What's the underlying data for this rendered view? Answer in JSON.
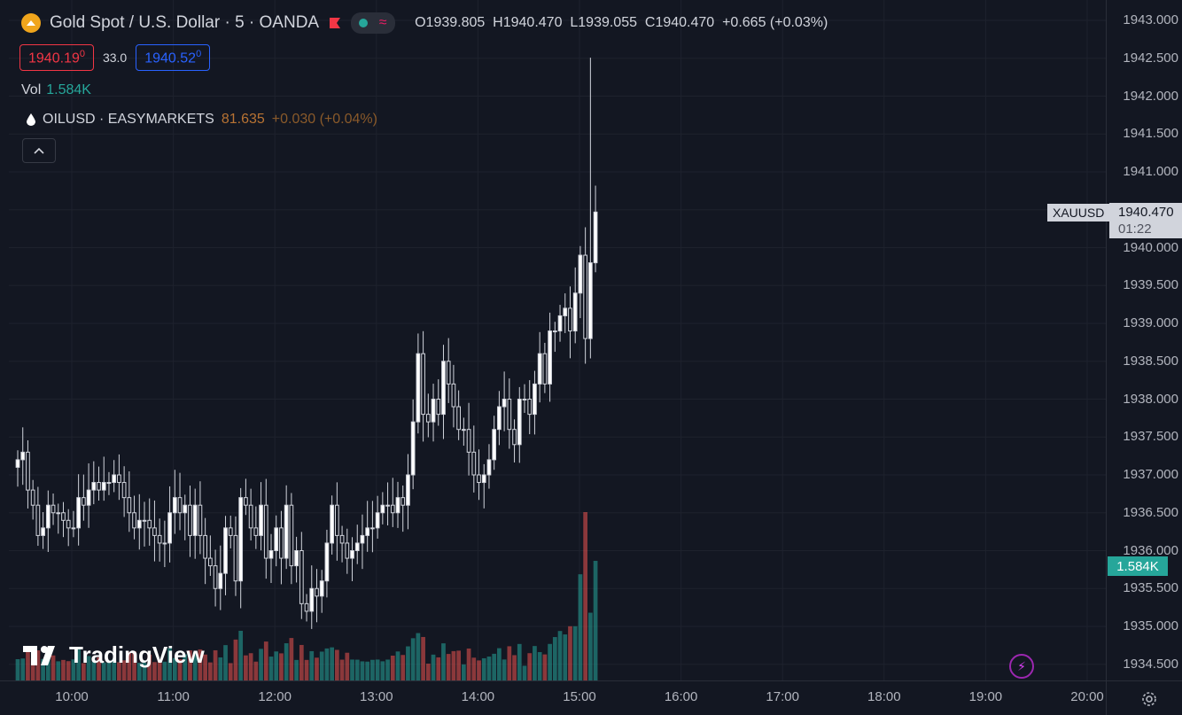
{
  "header": {
    "symbol_title": "Gold Spot / U.S. Dollar · 5 · OANDA",
    "ohlc": {
      "o_label": "O",
      "o": "1939.805",
      "h_label": "H",
      "h": "1940.470",
      "l_label": "L",
      "l": "1939.055",
      "c_label": "C",
      "c": "1940.470",
      "change": "+0.665 (+0.03%)"
    }
  },
  "quotes": {
    "sell": "1940.19",
    "sell_sup": "0",
    "spread": "33.0",
    "buy": "1940.52",
    "buy_sup": "0"
  },
  "volume_legend": {
    "label": "Vol",
    "value": "1.584K"
  },
  "compare": {
    "symbol": "OILUSD · EASYMARKETS",
    "value": "81.635",
    "change": "+0.030 (+0.04%)"
  },
  "price_scale": {
    "last_price": "1940.470",
    "countdown": "01:22",
    "symbol_tag": "XAUUSD",
    "volume_tag": "1.584K"
  },
  "branding": {
    "logo_text": "TradingView"
  },
  "colors": {
    "background": "#131722",
    "up": "#ffffff",
    "down": "#ffffff",
    "vol_up": "#26a69a",
    "vol_down": "#ef5350",
    "grid": "#1e222d"
  },
  "chart_data": {
    "type": "candlestick",
    "y_ticks": [
      "1943.000",
      "1942.500",
      "1942.000",
      "1941.500",
      "1941.000",
      "1940.500",
      "1940.000",
      "1939.500",
      "1939.000",
      "1938.500",
      "1938.000",
      "1937.500",
      "1937.000",
      "1936.500",
      "1936.000",
      "1935.500",
      "1935.000",
      "1934.500"
    ],
    "x_ticks": [
      "10:00",
      "11:00",
      "12:00",
      "13:00",
      "14:00",
      "15:00",
      "16:00",
      "17:00",
      "18:00",
      "19:00",
      "20:00"
    ],
    "ylim": [
      1934.3,
      1943.2
    ],
    "xlim_bars": [
      0,
      146
    ],
    "bar_minutes": 5,
    "first_time": "09:25",
    "candles_close": [
      1937.2,
      1937.3,
      1936.8,
      1936.6,
      1936.2,
      1936.3,
      1936.6,
      1936.5,
      1936.5,
      1936.4,
      1936.3,
      1936.3,
      1936.7,
      1936.6,
      1936.8,
      1936.9,
      1936.8,
      1936.9,
      1936.9,
      1937.0,
      1936.9,
      1936.7,
      1936.5,
      1936.3,
      1936.4,
      1936.4,
      1936.3,
      1936.2,
      1936.1,
      1936.1,
      1936.5,
      1936.7,
      1936.5,
      1936.6,
      1936.2,
      1936.6,
      1936.2,
      1935.9,
      1935.8,
      1935.5,
      1935.7,
      1936.3,
      1936.2,
      1935.6,
      1936.7,
      1936.6,
      1936.3,
      1936.2,
      1936.6,
      1935.9,
      1936.0,
      1936.3,
      1935.9,
      1936.6,
      1935.8,
      1936.0,
      1935.3,
      1935.2,
      1935.5,
      1935.4,
      1935.6,
      1936.1,
      1936.6,
      1936.2,
      1936.1,
      1935.9,
      1936.0,
      1936.1,
      1936.2,
      1936.3,
      1936.3,
      1936.5,
      1936.6,
      1936.6,
      1936.5,
      1936.7,
      1936.6,
      1937.0,
      1937.7,
      1938.6,
      1937.8,
      1937.7,
      1938.0,
      1937.8,
      1938.5,
      1938.2,
      1937.9,
      1937.6,
      1937.6,
      1937.3,
      1937.0,
      1936.9,
      1937.0,
      1937.2,
      1937.6,
      1937.9,
      1938.0,
      1937.6,
      1937.4,
      1938.0,
      1938.0,
      1937.8,
      1938.2,
      1938.6,
      1938.2,
      1938.9,
      1938.9,
      1939.1,
      1939.2,
      1938.9,
      1939.4,
      1939.9,
      1938.8,
      1939.8,
      1940.47
    ]
  }
}
